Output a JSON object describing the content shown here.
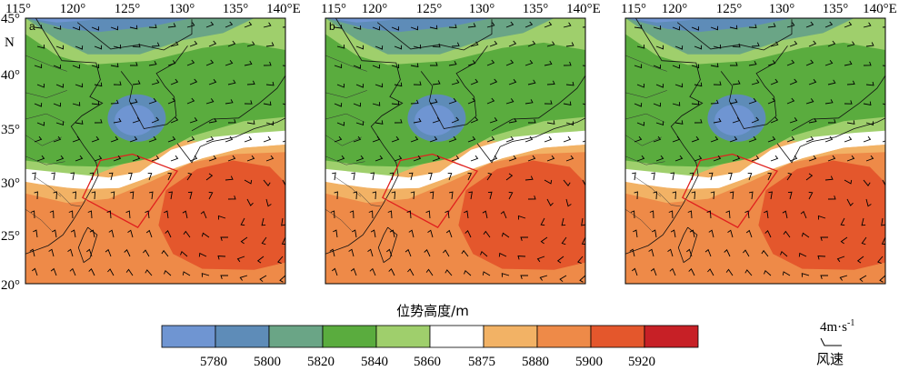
{
  "panels": [
    {
      "label": "a",
      "lon_ticks": [
        "115°",
        "120°",
        "125°",
        "130°",
        "135°",
        "140°E"
      ],
      "lat_ticks": [
        "45°",
        "40°",
        "35°",
        "30°",
        "25°",
        "20°"
      ],
      "north_label": "N"
    },
    {
      "label": "b",
      "lon_ticks": [
        "115°",
        "120°",
        "125°",
        "130°",
        "135°",
        "140°E"
      ]
    },
    {
      "label": "",
      "lon_ticks": [
        "115°",
        "120°",
        "125°",
        "130°",
        "135°",
        "140°E"
      ]
    }
  ],
  "colorbar": {
    "title": "位势高度/m",
    "tick_labels": [
      "5780",
      "5800",
      "5820",
      "5840",
      "5860",
      "5875",
      "5880",
      "5900",
      "5920"
    ],
    "colors": [
      "#6f95d2",
      "#5e8cb8",
      "#6aa586",
      "#5aac3e",
      "#9fcf6c",
      "#ffffff",
      "#f2b265",
      "#ee8a48",
      "#e4572c",
      "#c72026"
    ]
  },
  "wind_key": {
    "value": "4m·s",
    "exponent": "-1",
    "label": "风速"
  },
  "map": {
    "extent": {
      "lon": [
        115,
        140
      ],
      "lat": [
        20,
        45
      ]
    },
    "box_outline_color": "#e0201e"
  }
}
